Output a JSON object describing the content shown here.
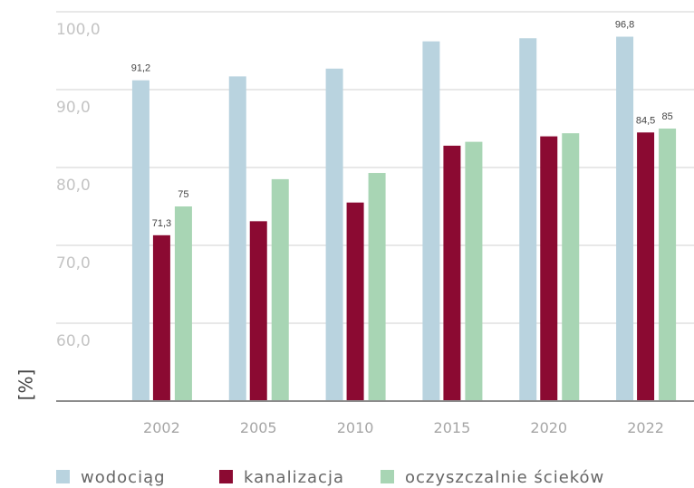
{
  "chart_data": {
    "type": "bar",
    "y_label": "[%]",
    "categories": [
      "2002",
      "2005",
      "2010",
      "2015",
      "2020",
      "2022"
    ],
    "series": [
      {
        "name": "wodociąg",
        "color": "#b9d3df",
        "values": [
          91.2,
          91.7,
          92.7,
          96.2,
          96.6,
          96.8
        ],
        "value_labels": [
          "91,2",
          null,
          null,
          null,
          null,
          "96,8"
        ]
      },
      {
        "name": "kanalizacja",
        "color": "#8b0a32",
        "values": [
          71.3,
          73.1,
          75.5,
          82.8,
          84.0,
          84.5
        ],
        "value_labels": [
          "71,3",
          null,
          null,
          null,
          null,
          "84,5"
        ]
      },
      {
        "name": "oczyszczalnie ścieków",
        "color": "#a8d5b4",
        "values": [
          75,
          78.5,
          79.3,
          83.3,
          84.4,
          85
        ],
        "value_labels": [
          "75",
          null,
          null,
          null,
          null,
          "85"
        ]
      }
    ],
    "ylim": [
      50,
      100
    ],
    "yticks": [
      {
        "value": 60,
        "label": "60,0"
      },
      {
        "value": 70,
        "label": "70,0"
      },
      {
        "value": 80,
        "label": "80,0"
      },
      {
        "value": 90,
        "label": "90,0"
      },
      {
        "value": 100,
        "label": "100,0"
      }
    ],
    "grid": true
  }
}
